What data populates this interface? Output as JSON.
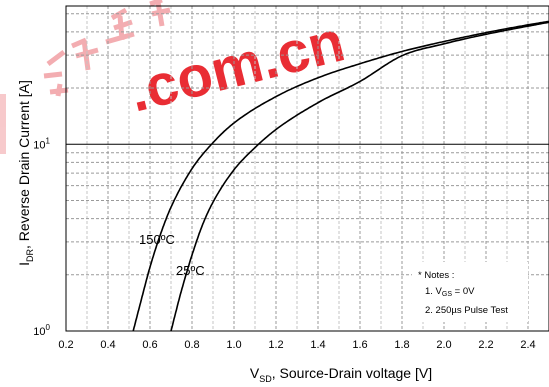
{
  "chart_data": {
    "type": "line",
    "title": "",
    "xlabel": {
      "main": "V",
      "sub": "SD",
      "rest": ", Source-Drain voltage [V]"
    },
    "ylabel": {
      "main": "I",
      "sub": "DR",
      "rest": ", Reverse Drain Current [A]"
    },
    "x_ticks": [
      "0.2",
      "0.4",
      "0.6",
      "0.8",
      "1.0",
      "1.2",
      "1.4",
      "1.6",
      "1.8",
      "2.0",
      "2.2",
      "2.4"
    ],
    "y_ticks": [
      {
        "base": "10",
        "exp": "0",
        "value": 1
      },
      {
        "base": "10",
        "exp": "1",
        "value": 10
      }
    ],
    "xlim": [
      0.2,
      2.5
    ],
    "y_scale": "log",
    "ylim": [
      1,
      55
    ],
    "grid": true,
    "series": [
      {
        "name": "150ºC",
        "color": "#000000",
        "x": [
          0.52,
          0.55,
          0.6,
          0.65,
          0.7,
          0.8,
          0.9,
          1.0,
          1.2,
          1.4,
          1.6,
          1.8,
          2.0,
          2.2,
          2.4,
          2.5
        ],
        "y": [
          1.0,
          1.35,
          2.2,
          3.3,
          4.6,
          7.4,
          10.2,
          13.0,
          18.0,
          22.7,
          27.0,
          31.4,
          35.5,
          39.6,
          43.6,
          45.5
        ]
      },
      {
        "name": "25ºC",
        "color": "#000000",
        "x": [
          0.7,
          0.75,
          0.8,
          0.85,
          0.9,
          1.0,
          1.1,
          1.2,
          1.4,
          1.6,
          1.8,
          2.0,
          2.2,
          2.4,
          2.5
        ],
        "y": [
          1.0,
          1.65,
          2.55,
          3.7,
          4.9,
          7.3,
          9.6,
          12.0,
          16.7,
          21.7,
          29.8,
          34.5,
          38.8,
          42.9,
          45.0
        ]
      }
    ],
    "annotations": {
      "label_150": "150ºC",
      "label_25": "25ºC",
      "notes": [
        "* Notes :",
        "1. V",
        "GS",
        " = 0V",
        "2. 250µs Pulse Test"
      ]
    },
    "watermark": ".com.cn"
  }
}
